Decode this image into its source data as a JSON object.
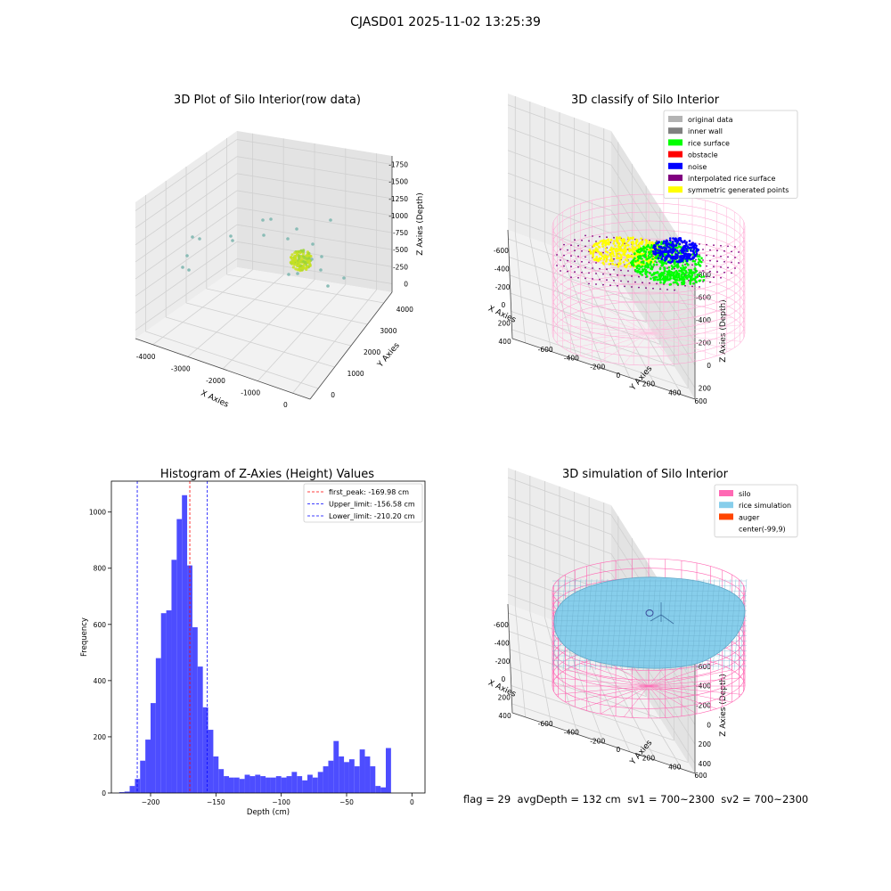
{
  "suptitle": "CJASD01 2025-11-02 13:25:39",
  "footer": {
    "flag": "flag = 29",
    "avg_depth": "avgDepth = 132 cm",
    "sv1": "sv1 = 700~2300",
    "sv2": "sv2 = 700~2300"
  },
  "colors": {
    "original": "#b3b3b3",
    "inner_wall": "#808080",
    "rice_surface": "#00ff00",
    "obstacle": "#ff0000",
    "noise": "#0000ff",
    "interpolated": "#800080",
    "symmetric": "#ffff00",
    "silo": "#ff69b4",
    "rice_sim": "#87ceeb",
    "auger": "#ff4500",
    "hist_bar": "#4d4dff",
    "peak_line": "#ff0000",
    "limit_line": "#0000ff"
  },
  "chart_data": [
    {
      "type": "scatter3d",
      "title": "3D Plot of Silo Interior(row data)",
      "xlabel": "X Axies",
      "ylabel": "Y Axies",
      "zlabel": "Z Axies (Depth)",
      "x_ticks": [
        "-4000",
        "-3000",
        "-2000",
        "-1000",
        "0"
      ],
      "y_ticks": [
        "0",
        "1000",
        "2000",
        "3000",
        "4000"
      ],
      "z_ticks": [
        "0",
        "-250",
        "-500",
        "-750",
        "-1000",
        "-1250",
        "-1500",
        "-1750"
      ],
      "grid": true
    },
    {
      "type": "scatter3d",
      "title": "3D classify of Silo Interior",
      "xlabel": "X Axies",
      "ylabel": "Y Axies",
      "zlabel": "Z Axies (Depth)",
      "x_ticks": [
        "-600",
        "-400",
        "-200",
        "0",
        "200",
        "400"
      ],
      "y_ticks": [
        "-600",
        "-400",
        "-200",
        "0",
        "200",
        "400",
        "600"
      ],
      "z_ticks": [
        "200",
        "0",
        "-200",
        "-400",
        "-600",
        "-800"
      ],
      "z_top_partial": "0",
      "legend_position": "top-right",
      "legend": [
        {
          "label": "original data",
          "color": "#b3b3b3"
        },
        {
          "label": "inner wall",
          "color": "#808080"
        },
        {
          "label": "rice surface",
          "color": "#00ff00"
        },
        {
          "label": "obstacle",
          "color": "#ff0000"
        },
        {
          "label": "noise",
          "color": "#0000ff"
        },
        {
          "label": "interpolated rice surface",
          "color": "#800080"
        },
        {
          "label": "symmetric generated points",
          "color": "#ffff00"
        }
      ],
      "grid": true
    },
    {
      "type": "bar",
      "title": "Histogram of Z-Axies (Height) Values",
      "xlabel": "Depth (cm)",
      "ylabel": "Frequency",
      "xlim": [
        -230,
        10
      ],
      "ylim": [
        0,
        1110
      ],
      "x_ticks": [
        {
          "value": -200,
          "label": "−200"
        },
        {
          "value": -150,
          "label": "−150"
        },
        {
          "value": -100,
          "label": "−100"
        },
        {
          "value": -50,
          "label": "−50"
        },
        {
          "value": 0,
          "label": "0"
        }
      ],
      "y_ticks": [
        0,
        200,
        400,
        600,
        800,
        1000
      ],
      "bin_width": 4,
      "bins": [
        {
          "x": -222,
          "y": 3
        },
        {
          "x": -218,
          "y": 5
        },
        {
          "x": -214,
          "y": 25
        },
        {
          "x": -210,
          "y": 50
        },
        {
          "x": -206,
          "y": 115
        },
        {
          "x": -202,
          "y": 190
        },
        {
          "x": -198,
          "y": 320
        },
        {
          "x": -194,
          "y": 480
        },
        {
          "x": -190,
          "y": 640
        },
        {
          "x": -186,
          "y": 650
        },
        {
          "x": -182,
          "y": 830
        },
        {
          "x": -178,
          "y": 975
        },
        {
          "x": -174,
          "y": 1060
        },
        {
          "x": -170,
          "y": 810
        },
        {
          "x": -166,
          "y": 590
        },
        {
          "x": -162,
          "y": 450
        },
        {
          "x": -158,
          "y": 305
        },
        {
          "x": -154,
          "y": 225
        },
        {
          "x": -150,
          "y": 130
        },
        {
          "x": -146,
          "y": 85
        },
        {
          "x": -142,
          "y": 60
        },
        {
          "x": -138,
          "y": 55
        },
        {
          "x": -134,
          "y": 55
        },
        {
          "x": -130,
          "y": 50
        },
        {
          "x": -126,
          "y": 65
        },
        {
          "x": -122,
          "y": 60
        },
        {
          "x": -118,
          "y": 65
        },
        {
          "x": -114,
          "y": 60
        },
        {
          "x": -110,
          "y": 55
        },
        {
          "x": -106,
          "y": 55
        },
        {
          "x": -102,
          "y": 60
        },
        {
          "x": -98,
          "y": 55
        },
        {
          "x": -94,
          "y": 60
        },
        {
          "x": -90,
          "y": 75
        },
        {
          "x": -86,
          "y": 60
        },
        {
          "x": -82,
          "y": 45
        },
        {
          "x": -78,
          "y": 65
        },
        {
          "x": -74,
          "y": 55
        },
        {
          "x": -70,
          "y": 75
        },
        {
          "x": -66,
          "y": 95
        },
        {
          "x": -62,
          "y": 115
        },
        {
          "x": -58,
          "y": 185
        },
        {
          "x": -54,
          "y": 130
        },
        {
          "x": -50,
          "y": 110
        },
        {
          "x": -46,
          "y": 120
        },
        {
          "x": -42,
          "y": 95
        },
        {
          "x": -38,
          "y": 155
        },
        {
          "x": -34,
          "y": 130
        },
        {
          "x": -30,
          "y": 95
        },
        {
          "x": -26,
          "y": 25
        },
        {
          "x": -22,
          "y": 20
        },
        {
          "x": -18,
          "y": 160
        }
      ],
      "lines": [
        {
          "name": "first_peak: -169.98 cm",
          "x": -169.98,
          "color": "#ff0000"
        },
        {
          "name": "Upper_limit: -156.58 cm",
          "x": -156.58,
          "color": "#0000ff"
        },
        {
          "name": "Lower_limit: -210.20 cm",
          "x": -210.2,
          "color": "#0000ff"
        }
      ],
      "legend_position": "top-right",
      "grid": false
    },
    {
      "type": "surface3d",
      "title": "3D simulation of Silo Interior",
      "xlabel": "X Axies",
      "ylabel": "Y Axies",
      "zlabel": "Z Axies (Depth)",
      "x_ticks": [
        "-600",
        "-400",
        "-200",
        "0",
        "200",
        "400"
      ],
      "y_ticks": [
        "-600",
        "-400",
        "-200",
        "0",
        "200",
        "400",
        "600"
      ],
      "z_ticks": [
        "400",
        "200",
        "0",
        "-200",
        "-400",
        "-600",
        "-800"
      ],
      "legend_position": "top-right",
      "legend": [
        {
          "label": "silo",
          "color": "#ff69b4"
        },
        {
          "label": "rice simulation",
          "color": "#87ceeb"
        },
        {
          "label": "auger",
          "color": "#ff4500"
        },
        {
          "label": "center(-99,9)",
          "color": ""
        }
      ],
      "grid": true
    }
  ]
}
